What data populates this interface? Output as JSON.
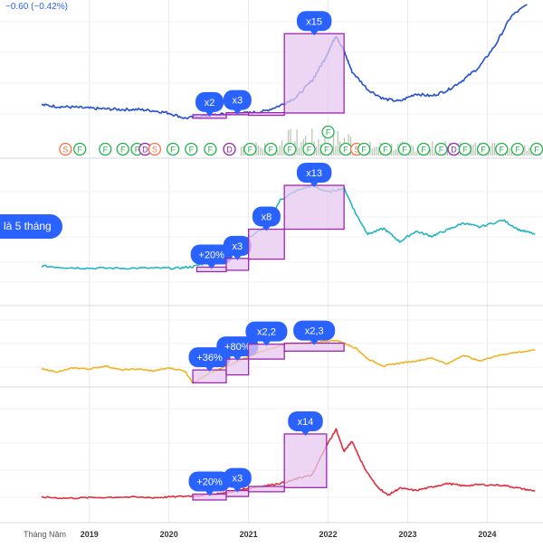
{
  "header": {
    "change_text": "−0.60 (−0.42%)"
  },
  "left_callout": {
    "text": "là 5 tháng"
  },
  "x_axis": {
    "label": "Tháng Năm",
    "ticks": [
      "2019",
      "2020",
      "2021",
      "2022",
      "2023",
      "2024"
    ],
    "tick_values": [
      2019.0,
      2020.0,
      2021.0,
      2022.0,
      2023.0,
      2024.0
    ]
  },
  "colors": {
    "panel1": "#2350d2",
    "panel2": "#22b5c3",
    "panel3": "#f0b323",
    "panel4": "#e02e3c",
    "box_fill": "#e7c8ef",
    "box_stroke": "#9c27b0",
    "bubble": "#2962ff",
    "volume": "#b7c2b3",
    "marker_green": "#22b14c",
    "marker_orange": "#ff7043",
    "marker_purple": "#8e24aa",
    "grid": "#e9e9ee"
  },
  "chart_data": [
    {
      "type": "line",
      "panel": "panel1",
      "series": [
        {
          "x": [
            2018.4,
            2018.6,
            2018.8,
            2019.0,
            2019.2,
            2019.4,
            2019.6,
            2019.8,
            2020.0,
            2020.2,
            2020.4,
            2020.6,
            2020.8,
            2021.0,
            2021.2,
            2021.4,
            2021.6,
            2021.8,
            2021.95,
            2022.1,
            2022.2,
            2022.3,
            2022.5,
            2022.7,
            2022.9,
            2023.1,
            2023.3,
            2023.5,
            2023.7,
            2023.9,
            2024.1,
            2024.3,
            2024.5
          ],
          "values": [
            3.3,
            3.0,
            2.9,
            2.7,
            2.6,
            2.5,
            2.5,
            2.3,
            1.9,
            1.0,
            1.3,
            1.6,
            1.8,
            1.9,
            2.2,
            3.2,
            4.6,
            7.5,
            11.0,
            15.2,
            12.5,
            9.0,
            5.9,
            4.3,
            3.9,
            5.2,
            4.8,
            5.8,
            7.6,
            9.8,
            13.5,
            18.5,
            20.5
          ]
        }
      ],
      "markers": {
        "x": [
          2018.7,
          2018.88,
          2019.2,
          2019.42,
          2019.6,
          2019.7,
          2019.82,
          2020.05,
          2020.28,
          2020.52,
          2020.76,
          2021.02,
          2021.28,
          2021.52,
          2021.76,
          2021.98,
          2022.22,
          2022.36,
          2022.45,
          2022.72,
          2022.96,
          2023.2,
          2023.42,
          2023.58,
          2023.72,
          2023.95,
          2024.18,
          2024.38,
          2024.62
        ],
        "labels": [
          "S",
          "F",
          "F",
          "F",
          "F",
          "D",
          "S",
          "F",
          "F",
          "F",
          "D",
          "F",
          "F",
          "F",
          "F",
          "F",
          "F",
          "S",
          "F",
          "F",
          "F",
          "F",
          "F",
          "D",
          "F",
          "F",
          "F",
          "F",
          "F"
        ]
      },
      "extra_marker": {
        "x": 2022.0,
        "label": "F"
      },
      "annotations": [
        {
          "label": "x2",
          "x0": 2020.3,
          "x1": 2020.72,
          "y0": 1.0,
          "y1": 1.6
        },
        {
          "label": "x3",
          "x0": 2020.72,
          "x1": 2021.0,
          "y0": 1.6,
          "y1": 1.95
        },
        {
          "label": "",
          "x0": 2021.0,
          "x1": 2021.45,
          "y0": 1.5,
          "y1": 1.95
        },
        {
          "label": "x15",
          "x0": 2021.45,
          "x1": 2022.2,
          "y0": 1.9,
          "y1": 15.5
        }
      ]
    },
    {
      "type": "line",
      "panel": "panel2",
      "series": [
        {
          "x": [
            2018.4,
            2018.7,
            2019.0,
            2019.4,
            2019.8,
            2020.1,
            2020.3,
            2020.5,
            2020.7,
            2020.9,
            2021.0,
            2021.2,
            2021.4,
            2021.6,
            2021.8,
            2022.0,
            2022.2,
            2022.35,
            2022.5,
            2022.7,
            2022.9,
            2023.1,
            2023.3,
            2023.5,
            2023.7,
            2023.9,
            2024.2,
            2024.4,
            2024.6
          ],
          "values": [
            1.0,
            0.8,
            0.7,
            0.7,
            0.7,
            0.7,
            0.9,
            1.6,
            2.4,
            3.8,
            5.1,
            6.5,
            10.5,
            11.8,
            12.6,
            11.6,
            12.2,
            8.5,
            5.6,
            6.4,
            4.5,
            6.0,
            5.3,
            6.2,
            7.2,
            6.6,
            7.6,
            6.2,
            5.6
          ]
        }
      ],
      "annotations": [
        {
          "label": "+20%",
          "x0": 2020.35,
          "x1": 2020.72,
          "y0": 0.2,
          "y1": 0.85
        },
        {
          "label": "x3",
          "x0": 2020.72,
          "x1": 2021.0,
          "y0": 0.4,
          "y1": 2.1
        },
        {
          "label": "x8",
          "x0": 2021.0,
          "x1": 2021.45,
          "y0": 2.0,
          "y1": 6.3
        },
        {
          "label": "x13",
          "x0": 2021.45,
          "x1": 2022.2,
          "y0": 6.3,
          "y1": 12.6
        }
      ]
    },
    {
      "type": "line",
      "panel": "panel3",
      "series": [
        {
          "x": [
            2018.4,
            2018.6,
            2018.8,
            2019.0,
            2019.2,
            2019.4,
            2019.6,
            2019.8,
            2020.0,
            2020.2,
            2020.3,
            2020.5,
            2020.7,
            2020.9,
            2021.1,
            2021.3,
            2021.5,
            2021.7,
            2021.9,
            2022.1,
            2022.2,
            2022.35,
            2022.5,
            2022.7,
            2022.9,
            2023.1,
            2023.3,
            2023.5,
            2023.7,
            2023.9,
            2024.1,
            2024.3,
            2024.6
          ],
          "values": [
            2.0,
            1.7,
            2.1,
            2.0,
            2.3,
            1.9,
            2.0,
            1.8,
            2.1,
            1.8,
            0.6,
            1.5,
            2.2,
            2.9,
            3.6,
            4.1,
            4.5,
            4.6,
            4.7,
            4.9,
            4.6,
            4.1,
            3.0,
            2.3,
            2.6,
            2.8,
            3.1,
            2.5,
            3.4,
            2.8,
            3.3,
            3.6,
            3.9
          ]
        }
      ],
      "annotations": [
        {
          "label": "+36%",
          "x0": 2020.3,
          "x1": 2020.72,
          "y0": 0.6,
          "y1": 1.9
        },
        {
          "label": "+80%",
          "x0": 2020.72,
          "x1": 2021.0,
          "y0": 1.4,
          "y1": 3.0
        },
        {
          "label": "x2,2",
          "x0": 2021.0,
          "x1": 2021.45,
          "y0": 3.0,
          "y1": 4.5
        },
        {
          "label": "x2,3",
          "x0": 2021.45,
          "x1": 2022.2,
          "y0": 3.8,
          "y1": 4.6
        }
      ]
    },
    {
      "type": "line",
      "panel": "panel4",
      "series": [
        {
          "x": [
            2018.4,
            2018.7,
            2019.0,
            2019.4,
            2019.8,
            2020.0,
            2020.3,
            2020.5,
            2020.7,
            2020.9,
            2021.0,
            2021.3,
            2021.5,
            2021.65,
            2021.8,
            2021.95,
            2022.1,
            2022.2,
            2022.3,
            2022.45,
            2022.6,
            2022.75,
            2022.9,
            2023.1,
            2023.3,
            2023.5,
            2023.7,
            2023.9,
            2024.2,
            2024.4,
            2024.6
          ],
          "values": [
            0.5,
            0.3,
            0.4,
            0.5,
            0.4,
            0.5,
            0.7,
            0.9,
            1.2,
            1.7,
            2.0,
            2.6,
            3.1,
            3.8,
            4.2,
            8.5,
            12.0,
            8.2,
            10.0,
            5.6,
            2.5,
            0.8,
            2.0,
            1.6,
            2.2,
            2.8,
            2.4,
            2.6,
            2.5,
            2.0,
            1.5
          ]
        }
      ],
      "annotations": [
        {
          "label": "+20%",
          "x0": 2020.3,
          "x1": 2020.72,
          "y0": 0.0,
          "y1": 1.0
        },
        {
          "label": "x3",
          "x0": 2020.72,
          "x1": 2021.0,
          "y0": 0.6,
          "y1": 1.6
        },
        {
          "label": "",
          "x0": 2021.0,
          "x1": 2021.45,
          "y0": 1.4,
          "y1": 2.3
        },
        {
          "label": "x14",
          "x0": 2021.45,
          "x1": 2021.98,
          "y0": 2.1,
          "y1": 11.2
        }
      ]
    }
  ]
}
